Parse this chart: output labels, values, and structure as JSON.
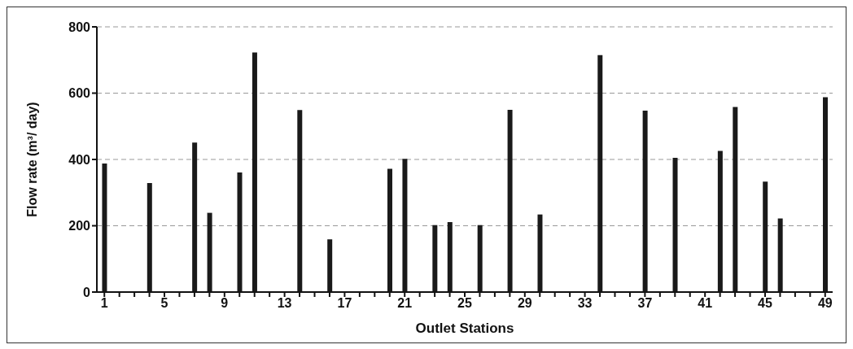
{
  "chart_data": {
    "type": "bar",
    "xlabel": "Outlet Stations",
    "ylabel": "Flow rate (m³/ day)",
    "categories": [
      "1",
      null,
      null,
      null,
      "5",
      null,
      null,
      null,
      "9",
      null,
      null,
      null,
      "13",
      null,
      null,
      null,
      "17",
      null,
      null,
      null,
      "21",
      null,
      null,
      null,
      "25",
      null,
      null,
      null,
      "29",
      null,
      null,
      null,
      "33",
      null,
      null,
      null,
      "37",
      null,
      null,
      null,
      "41",
      null,
      null,
      null,
      "45",
      null,
      null,
      null,
      "49"
    ],
    "values": [
      388,
      null,
      null,
      329,
      null,
      null,
      451,
      239,
      null,
      361,
      723,
      null,
      null,
      549,
      null,
      159,
      null,
      null,
      null,
      372,
      402,
      null,
      202,
      211,
      null,
      202,
      null,
      550,
      null,
      234,
      null,
      null,
      null,
      715,
      null,
      null,
      547,
      null,
      405,
      null,
      null,
      426,
      558,
      null,
      333,
      222,
      null,
      null,
      588
    ],
    "color": "#1a1a1a",
    "ylim": [
      0,
      800
    ],
    "yticks": [
      0,
      200,
      400,
      600,
      800
    ],
    "grid": "y"
  }
}
